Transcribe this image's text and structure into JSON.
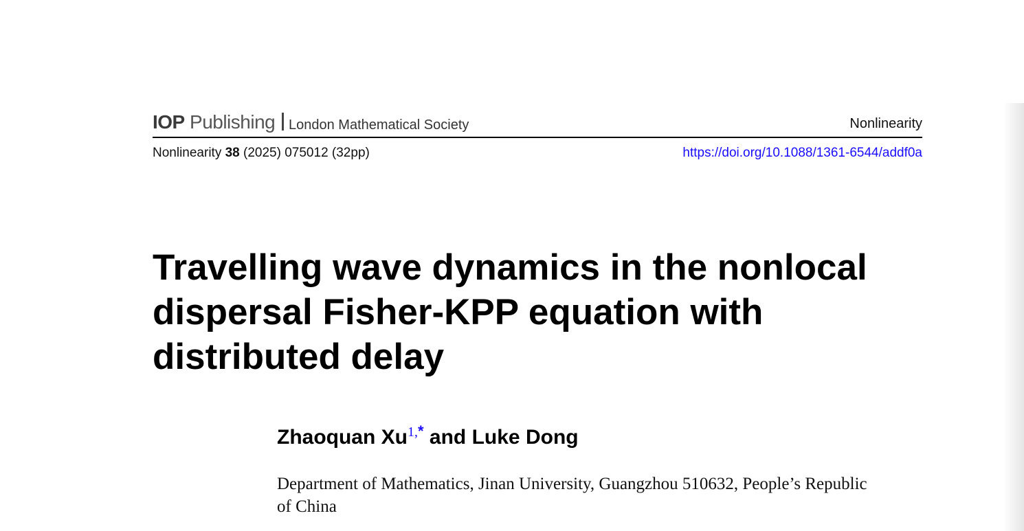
{
  "header": {
    "publisher_bold": "IOP",
    "publisher_rest": "Publishing",
    "society": "London Mathematical Society",
    "journal": "Nonlinearity"
  },
  "citation": {
    "journal": "Nonlinearity",
    "volume": "38",
    "rest": "(2025) 075012 (32pp)",
    "doi": "https://doi.org/10.1088/1361-6544/addf0a"
  },
  "article": {
    "title": "Travelling wave dynamics in the nonlocal dispersal Fisher-KPP equation with distributed delay",
    "author1": "Zhaoquan Xu",
    "author1_sup": "1,",
    "author1_star": "*",
    "connector": "and",
    "author2": "Luke Dong",
    "affiliation": "Department of Mathematics, Jinan University, Guangzhou 510632, People’s Republic of China"
  },
  "colors": {
    "link": "#1a0dff"
  }
}
